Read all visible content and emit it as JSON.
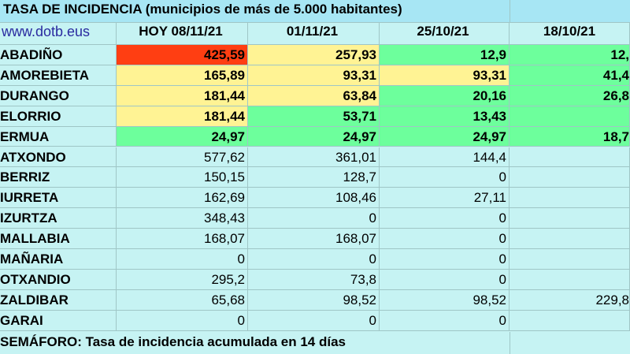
{
  "title": "TASA DE INCIDENCIA  (municipios de más de 5.000 habitantes)",
  "header": {
    "website": "www.dotb.eus",
    "columns": [
      "HOY 08/11/21",
      "01/11/21",
      "25/10/21",
      "18/10/21"
    ]
  },
  "rows": [
    {
      "name": "ABADIÑO",
      "values": [
        "425,59",
        "257,93",
        "12,9",
        "12,"
      ],
      "colors": [
        "#ff3e12",
        "#fff394",
        "#6dff9c",
        "#6dff9c"
      ],
      "bold": true
    },
    {
      "name": "AMOREBIETA",
      "values": [
        "165,89",
        "93,31",
        "93,31",
        "41,4"
      ],
      "colors": [
        "#fff394",
        "#fff394",
        "#fff394",
        "#6dff9c"
      ],
      "bold": true
    },
    {
      "name": "DURANGO",
      "values": [
        "181,44",
        "63,84",
        "20,16",
        "26,8"
      ],
      "colors": [
        "#fff394",
        "#fff394",
        "#6dff9c",
        "#6dff9c"
      ],
      "bold": true
    },
    {
      "name": "ELORRIO",
      "values": [
        "181,44",
        "53,71",
        "13,43",
        ""
      ],
      "colors": [
        "#fff394",
        "#6dff9c",
        "#6dff9c",
        "#6dff9c"
      ],
      "bold": true
    },
    {
      "name": "ERMUA",
      "values": [
        "24,97",
        "24,97",
        "24,97",
        "18,7"
      ],
      "colors": [
        "#6dff9c",
        "#6dff9c",
        "#6dff9c",
        "#6dff9c"
      ],
      "bold": true
    },
    {
      "name": "ATXONDO",
      "values": [
        "577,62",
        "361,01",
        "144,4",
        ""
      ],
      "colors": [],
      "bold": false
    },
    {
      "name": "BERRIZ",
      "values": [
        "150,15",
        "128,7",
        "0",
        ""
      ],
      "colors": [],
      "bold": false
    },
    {
      "name": "IURRETA",
      "values": [
        "162,69",
        "108,46",
        "27,11",
        ""
      ],
      "colors": [],
      "bold": false
    },
    {
      "name": "IZURTZA",
      "values": [
        "348,43",
        "0",
        "0",
        ""
      ],
      "colors": [],
      "bold": false
    },
    {
      "name": "MALLABIA",
      "values": [
        "168,07",
        "168,07",
        "0",
        ""
      ],
      "colors": [],
      "bold": false
    },
    {
      "name": "MAÑARIA",
      "values": [
        "0",
        "0",
        "0",
        ""
      ],
      "colors": [],
      "bold": false
    },
    {
      "name": "OTXANDIO",
      "values": [
        "295,2",
        "73,8",
        "0",
        ""
      ],
      "colors": [],
      "bold": false
    },
    {
      "name": "ZALDIBAR",
      "values": [
        "65,68",
        "98,52",
        "98,52",
        "229,8"
      ],
      "colors": [],
      "bold": false
    },
    {
      "name": "GARAI",
      "values": [
        "0",
        "0",
        "0",
        ""
      ],
      "colors": [],
      "bold": false
    }
  ],
  "footer": "SEMÁFORO:  Tasa de incidencia acumulada en 14 días"
}
